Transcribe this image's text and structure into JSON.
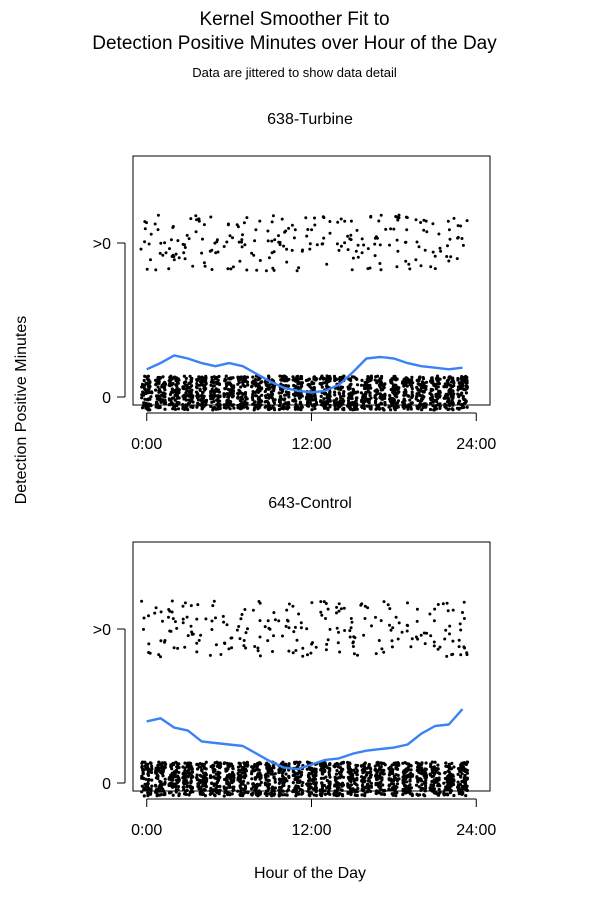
{
  "figure": {
    "title_line1": "Kernel Smoother Fit to",
    "title_line2": "Detection Positive Minutes over Hour of the Day",
    "subtitle": "Data are jittered to show data detail",
    "ylabel": "Detection Positive Minutes",
    "xlabel": "Hour of the Day"
  },
  "colors": {
    "smoother_line": "#3b82f6",
    "points": "#000000",
    "axis": "#000000"
  },
  "chart_data": [
    {
      "type": "scatter",
      "title": "638-Turbine",
      "xlabel": "Hour of the Day",
      "ylabel": "Detection Positive Minutes",
      "xlim": [
        -1,
        25
      ],
      "x_ticks": [
        0,
        12,
        24
      ],
      "x_tick_labels": [
        "0:00",
        "12:00",
        "24:00"
      ],
      "y_ticks": [
        0,
        1
      ],
      "y_tick_labels": [
        "0",
        ">0"
      ],
      "grid": false,
      "jittered": true,
      "series": [
        {
          "kind": "smoother",
          "x": [
            0,
            1,
            2,
            3,
            4,
            5,
            6,
            7,
            8,
            9,
            10,
            11,
            12,
            13,
            14,
            15,
            16,
            17,
            18,
            19,
            20,
            21,
            22,
            23
          ],
          "y": [
            0.18,
            0.22,
            0.27,
            0.25,
            0.22,
            0.2,
            0.22,
            0.2,
            0.15,
            0.1,
            0.06,
            0.04,
            0.03,
            0.04,
            0.08,
            0.16,
            0.25,
            0.26,
            0.25,
            0.22,
            0.2,
            0.19,
            0.18,
            0.19
          ]
        }
      ]
    },
    {
      "type": "scatter",
      "title": "643-Control",
      "xlabel": "Hour of the Day",
      "ylabel": "Detection Positive Minutes",
      "xlim": [
        -1,
        25
      ],
      "x_ticks": [
        0,
        12,
        24
      ],
      "x_tick_labels": [
        "0:00",
        "12:00",
        "24:00"
      ],
      "y_ticks": [
        0,
        1
      ],
      "y_tick_labels": [
        "0",
        ">0"
      ],
      "grid": false,
      "jittered": true,
      "series": [
        {
          "kind": "smoother",
          "x": [
            0,
            1,
            2,
            3,
            4,
            5,
            6,
            7,
            8,
            9,
            10,
            11,
            12,
            13,
            14,
            15,
            16,
            17,
            18,
            19,
            20,
            21,
            22,
            23
          ],
          "y": [
            0.4,
            0.42,
            0.36,
            0.34,
            0.27,
            0.26,
            0.25,
            0.24,
            0.19,
            0.14,
            0.1,
            0.09,
            0.12,
            0.15,
            0.16,
            0.19,
            0.21,
            0.22,
            0.23,
            0.25,
            0.32,
            0.37,
            0.38,
            0.48
          ]
        }
      ]
    }
  ]
}
